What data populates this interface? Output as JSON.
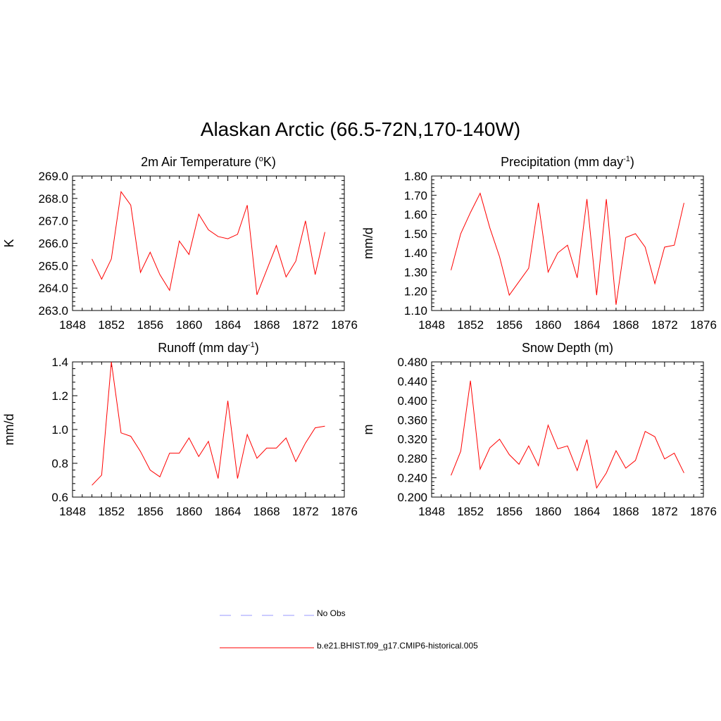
{
  "title": "Alaskan Arctic (66.5-72N,170-140W)",
  "legend": {
    "items": [
      {
        "label": "No Obs",
        "color": "#9999ff",
        "dash": true
      },
      {
        "label": "b.e21.BHIST.f09_g17.CMIP6-historical.005",
        "color": "#ff0000",
        "dash": false
      }
    ]
  },
  "chart_data": [
    {
      "type": "line",
      "title": "2m Air Temperature (",
      "title_sup": "o",
      "title_after": "K)",
      "ylabel": "K",
      "xlim": [
        1848,
        1876
      ],
      "xticks": [
        "1848",
        "1852",
        "1856",
        "1860",
        "1864",
        "1868",
        "1872",
        "1876"
      ],
      "ylim": [
        263.0,
        269.0
      ],
      "yticks": [
        "263.0",
        "264.0",
        "265.0",
        "266.0",
        "267.0",
        "268.0",
        "269.0"
      ],
      "x": [
        1850,
        1851,
        1852,
        1853,
        1854,
        1855,
        1856,
        1857,
        1858,
        1859,
        1860,
        1861,
        1862,
        1863,
        1864,
        1865,
        1866,
        1867,
        1868,
        1869,
        1870,
        1871,
        1872,
        1873,
        1874
      ],
      "series": [
        {
          "color": "#ff0000",
          "values": [
            265.3,
            264.4,
            265.3,
            268.3,
            267.7,
            264.7,
            265.6,
            264.6,
            263.9,
            266.1,
            265.5,
            267.3,
            266.6,
            266.3,
            266.2,
            266.4,
            267.7,
            263.7,
            264.8,
            265.9,
            264.5,
            265.2,
            267.0,
            264.6,
            266.5
          ]
        }
      ]
    },
    {
      "type": "line",
      "title": "Precipitation (mm day",
      "title_sup": "-1",
      "title_after": ")",
      "ylabel": "mm/d",
      "xlim": [
        1848,
        1876
      ],
      "xticks": [
        "1848",
        "1852",
        "1856",
        "1860",
        "1864",
        "1868",
        "1872",
        "1876"
      ],
      "ylim": [
        1.1,
        1.8
      ],
      "yticks": [
        "1.10",
        "1.20",
        "1.30",
        "1.40",
        "1.50",
        "1.60",
        "1.70",
        "1.80"
      ],
      "x": [
        1850,
        1851,
        1852,
        1853,
        1854,
        1855,
        1856,
        1857,
        1858,
        1859,
        1860,
        1861,
        1862,
        1863,
        1864,
        1865,
        1866,
        1867,
        1868,
        1869,
        1870,
        1871,
        1872,
        1873,
        1874
      ],
      "series": [
        {
          "color": "#ff0000",
          "values": [
            1.31,
            1.5,
            1.61,
            1.71,
            1.53,
            1.38,
            1.18,
            1.25,
            1.32,
            1.66,
            1.3,
            1.4,
            1.44,
            1.27,
            1.68,
            1.18,
            1.68,
            1.13,
            1.48,
            1.5,
            1.43,
            1.24,
            1.43,
            1.44,
            1.66
          ]
        }
      ]
    },
    {
      "type": "line",
      "title": "Runoff (mm day",
      "title_sup": "-1",
      "title_after": ")",
      "ylabel": "mm/d",
      "xlim": [
        1848,
        1876
      ],
      "xticks": [
        "1848",
        "1852",
        "1856",
        "1860",
        "1864",
        "1868",
        "1872",
        "1876"
      ],
      "ylim": [
        0.6,
        1.4
      ],
      "yticks": [
        "0.6",
        "0.8",
        "1.0",
        "1.2",
        "1.4"
      ],
      "x": [
        1850,
        1851,
        1852,
        1853,
        1854,
        1855,
        1856,
        1857,
        1858,
        1859,
        1860,
        1861,
        1862,
        1863,
        1864,
        1865,
        1866,
        1867,
        1868,
        1869,
        1870,
        1871,
        1872,
        1873,
        1874
      ],
      "series": [
        {
          "color": "#ff0000",
          "values": [
            0.67,
            0.73,
            1.4,
            0.98,
            0.96,
            0.87,
            0.76,
            0.72,
            0.86,
            0.86,
            0.95,
            0.84,
            0.93,
            0.71,
            1.17,
            0.71,
            0.97,
            0.83,
            0.89,
            0.89,
            0.95,
            0.81,
            0.92,
            1.01,
            1.02
          ]
        }
      ]
    },
    {
      "type": "line",
      "title": "Snow Depth (m)",
      "title_sup": "",
      "title_after": "",
      "ylabel": "m",
      "xlim": [
        1848,
        1876
      ],
      "xticks": [
        "1848",
        "1852",
        "1856",
        "1860",
        "1864",
        "1868",
        "1872",
        "1876"
      ],
      "ylim": [
        0.2,
        0.48
      ],
      "yticks": [
        "0.200",
        "0.240",
        "0.280",
        "0.320",
        "0.360",
        "0.400",
        "0.440",
        "0.480"
      ],
      "x": [
        1850,
        1851,
        1852,
        1853,
        1854,
        1855,
        1856,
        1857,
        1858,
        1859,
        1860,
        1861,
        1862,
        1863,
        1864,
        1865,
        1866,
        1867,
        1868,
        1869,
        1870,
        1871,
        1872,
        1873,
        1874
      ],
      "series": [
        {
          "color": "#ff0000",
          "values": [
            0.245,
            0.295,
            0.441,
            0.258,
            0.302,
            0.32,
            0.288,
            0.268,
            0.306,
            0.265,
            0.349,
            0.3,
            0.306,
            0.255,
            0.319,
            0.219,
            0.25,
            0.296,
            0.26,
            0.276,
            0.336,
            0.325,
            0.279,
            0.291,
            0.25
          ]
        }
      ]
    }
  ]
}
